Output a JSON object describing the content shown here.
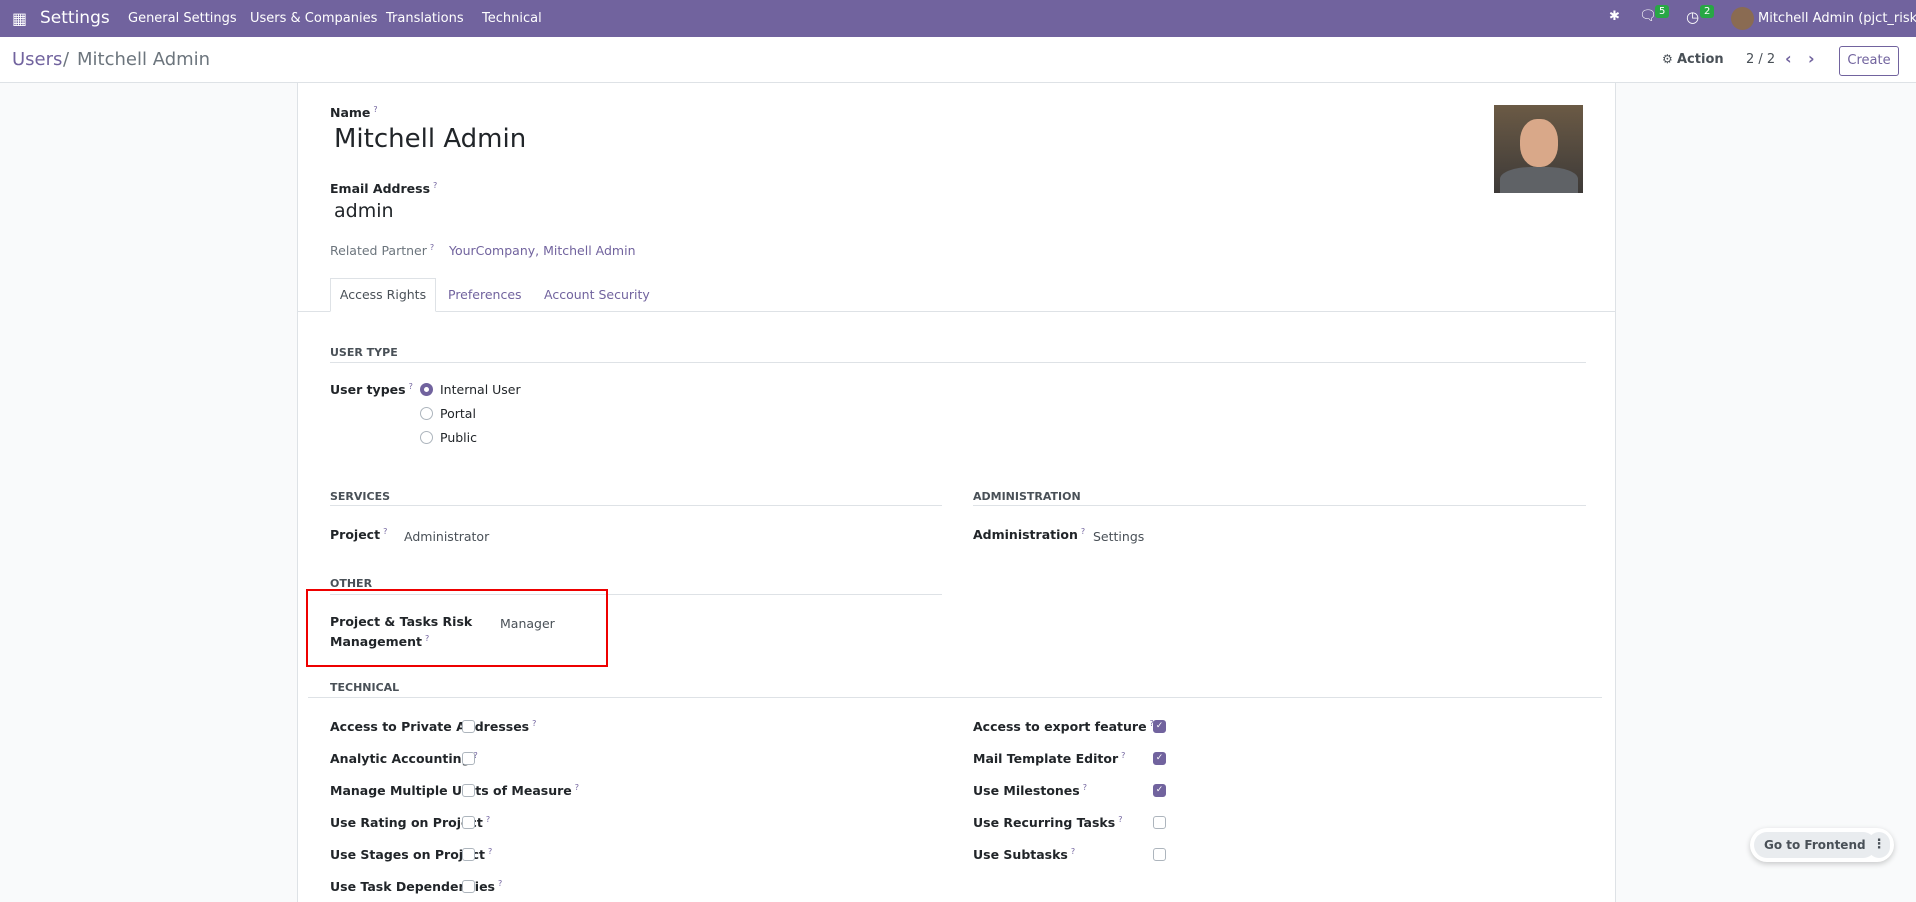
{
  "navbar": {
    "app": "Settings",
    "menus": [
      "General Settings",
      "Users & Companies",
      "Translations",
      "Technical"
    ],
    "chat_count": "5",
    "activity_count": "2",
    "user": "Mitchell Admin (pjct_risk)",
    "color": "#71639e"
  },
  "control": {
    "breadcrumb_parent": "Users",
    "breadcrumb_sep": "/",
    "breadcrumb_current": "Mitchell Admin",
    "action": "Action",
    "pager": "2 / 2",
    "create": "Create"
  },
  "form": {
    "name_label": "Name",
    "name": "Mitchell Admin",
    "email_label": "Email Address",
    "email": "admin",
    "partner_label": "Related Partner",
    "partner": "YourCompany, Mitchell Admin",
    "tabs": [
      "Access Rights",
      "Preferences",
      "Account Security"
    ],
    "user_type": {
      "title": "USER TYPE",
      "label": "User types",
      "options": [
        "Internal User",
        "Portal",
        "Public"
      ],
      "selected": "Internal User"
    },
    "services": {
      "title": "SERVICES",
      "label": "Project",
      "value": "Administrator"
    },
    "administration": {
      "title": "ADMINISTRATION",
      "label": "Administration",
      "value": "Settings"
    },
    "other": {
      "title": "OTHER",
      "label_line1": "Project & Tasks Risk",
      "label_line2": "Management",
      "value": "Manager"
    },
    "technical": {
      "title": "TECHNICAL",
      "left": [
        {
          "label": "Access to Private Addresses",
          "checked": false
        },
        {
          "label": "Analytic Accounting",
          "checked": false
        },
        {
          "label": "Manage Multiple Units of Measure",
          "checked": false
        },
        {
          "label": "Use Rating on Project",
          "checked": false
        },
        {
          "label": "Use Stages on Project",
          "checked": false
        },
        {
          "label": "Use Task Dependencies",
          "checked": false
        }
      ],
      "right": [
        {
          "label": "Access to export feature",
          "checked": true
        },
        {
          "label": "Mail Template Editor",
          "checked": true
        },
        {
          "label": "Use Milestones",
          "checked": true
        },
        {
          "label": "Use Recurring Tasks",
          "checked": false
        },
        {
          "label": "Use Subtasks",
          "checked": false
        }
      ]
    }
  },
  "frontend": {
    "label": "Go to Frontend"
  },
  "help_mark": "?"
}
